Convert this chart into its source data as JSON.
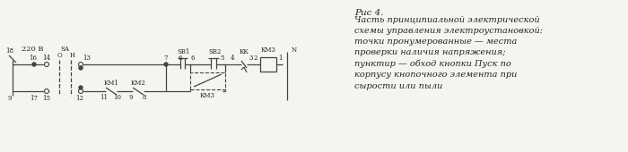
{
  "fig_width": 7.0,
  "fig_height": 1.7,
  "dpi": 100,
  "bg_color": "#f5f5f0",
  "line_color": "#444444",
  "text_color": "#222222",
  "title_text": "Рис 4.",
  "caption_text": "Часть принципиальной электрической\nсхемы управления электроустановкой:\nточки пронумерованные — места\nпроверки наличия напряжения;\nпунктир — обход кнопки Пуск по\nкорпусу кнопочного элемента при\nсырости или пыли",
  "label_220": "220 В",
  "label_N": "N",
  "label_SA": "SA",
  "label_O": "О",
  "label_H": "Н",
  "label_SB1": "SB1",
  "label_SB2": "SB2",
  "label_KM1": "KM1",
  "label_KM2": "KM2",
  "label_KM3_coil": "КМ3",
  "label_KM3_contact": "КМ3",
  "label_KK": "КК",
  "font_size_small": 5.0,
  "font_size_label": 6.0,
  "font_size_caption_title": 7.5,
  "font_size_caption": 7.0
}
